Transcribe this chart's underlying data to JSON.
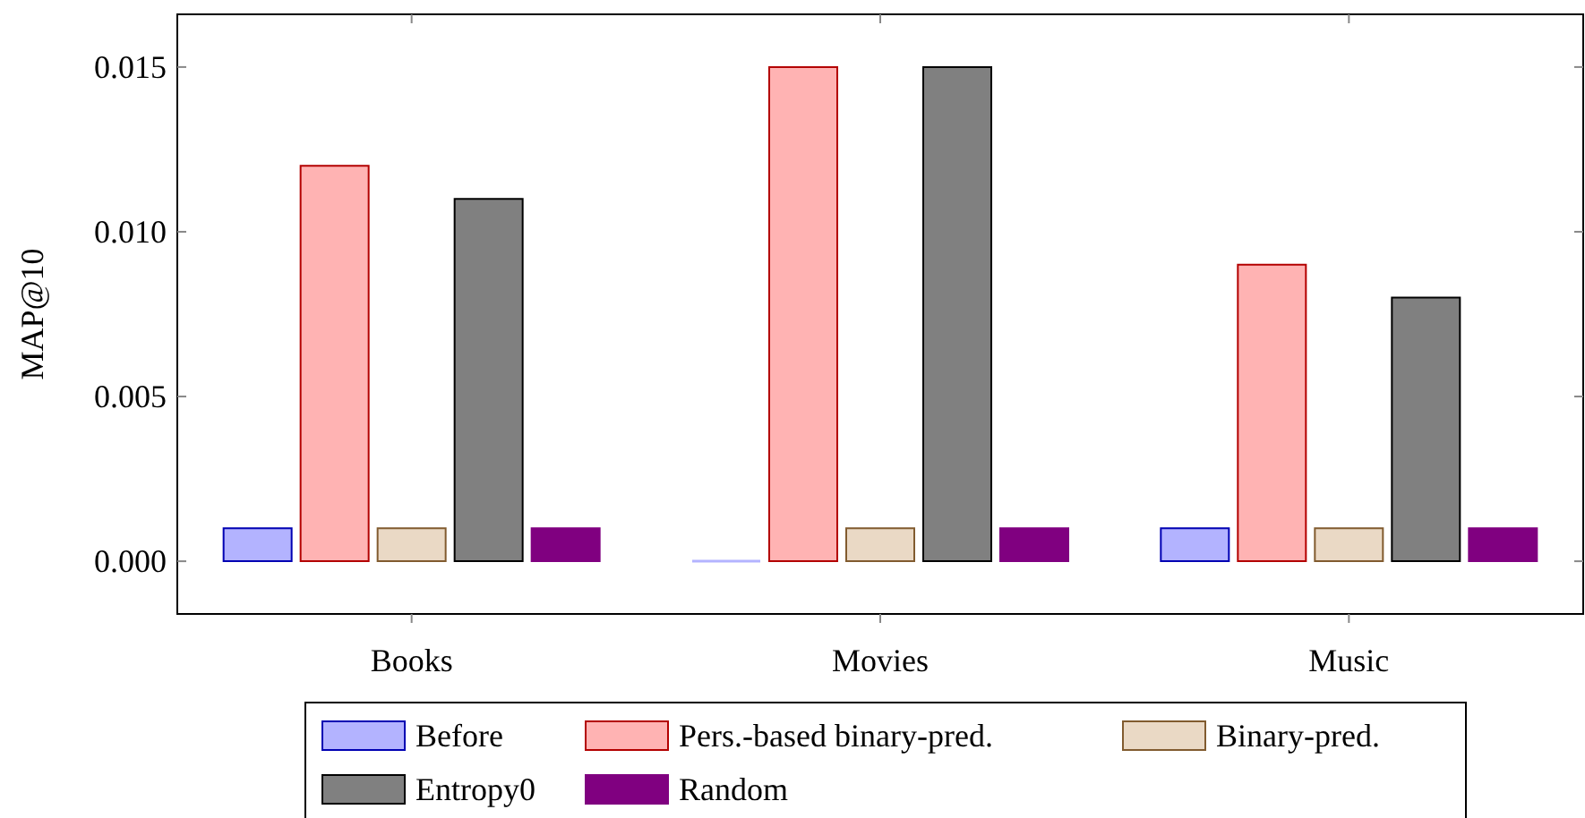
{
  "chart_data": {
    "type": "bar",
    "ylabel": "MAP@10",
    "categories": [
      "Books",
      "Movies",
      "Music"
    ],
    "series": [
      {
        "name": "Before",
        "color": "#b3b3ff",
        "values": [
          0.001,
          0,
          0.001
        ]
      },
      {
        "name": "Pers.-based binary-pred.",
        "color": "#ffb3b3",
        "values": [
          0.012,
          0.015,
          0.009
        ]
      },
      {
        "name": "Binary-pred.",
        "color": "#ead9c5",
        "values": [
          0.001,
          0.001,
          0.001
        ]
      },
      {
        "name": "Entropy0",
        "color": "#808080",
        "values": [
          0.011,
          0.015,
          0.008
        ]
      },
      {
        "name": "Random",
        "color": "#800080",
        "values": [
          0.001,
          0.001,
          0.001
        ]
      }
    ],
    "ylim": [
      -0.0016,
      0.0166
    ],
    "yticks": [
      {
        "value": 0,
        "label": "0.000"
      },
      {
        "value": 0.005,
        "label": "0.005"
      },
      {
        "value": 0.01,
        "label": "0.010"
      },
      {
        "value": 0.015,
        "label": "0.015"
      }
    ],
    "grid": false,
    "legend": "bottom"
  }
}
